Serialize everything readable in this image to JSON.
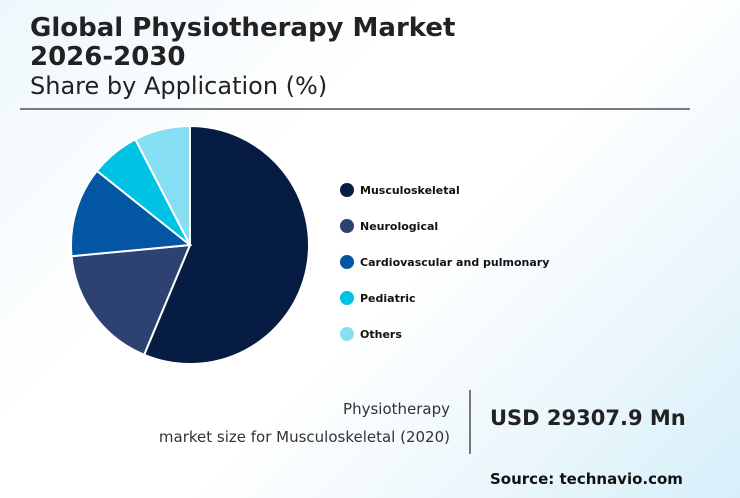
{
  "header": {
    "title_line1": "Global Physiotherapy Market",
    "title_line2": "2026-2030",
    "subtitle": "Share by Application (%)"
  },
  "chart_data": {
    "type": "pie",
    "title": "Global Physiotherapy Market 2026-2030",
    "subtitle": "Share by Application (%)",
    "categories": [
      "Musculoskeletal",
      "Neurological",
      "Cardiovascular and pulmonary",
      "Pediatric",
      "Others"
    ],
    "values": [
      56.3,
      17.2,
      12.2,
      6.7,
      7.6
    ],
    "colors": [
      "#071c42",
      "#2d4270",
      "#0256a3",
      "#00c3e3",
      "#86def2"
    ],
    "start_angle_deg": 0,
    "direction": "clockwise",
    "legend_position": "right"
  },
  "legend": {
    "items": [
      {
        "label": "Musculoskeletal",
        "color": "#071c42"
      },
      {
        "label": "Neurological",
        "color": "#2d4270"
      },
      {
        "label": "Cardiovascular and pulmonary",
        "color": "#0256a3"
      },
      {
        "label": "Pediatric",
        "color": "#00c3e3"
      },
      {
        "label": "Others",
        "color": "#86def2"
      }
    ]
  },
  "stat": {
    "label_line1": "Physiotherapy",
    "label_line2": "market size for Musculoskeletal (2020)",
    "value": "USD 29307.9 Mn"
  },
  "source": "Source: technavio.com"
}
